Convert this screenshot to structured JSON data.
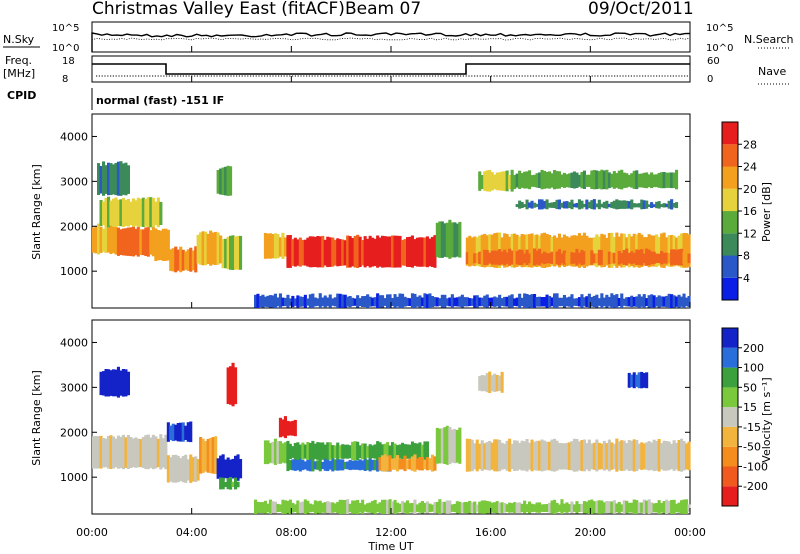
{
  "header": {
    "title": "Christmas Valley East (fitACF)",
    "beam": "Beam 07",
    "date": "09/Oct/2011"
  },
  "panels": {
    "nsky": {
      "label": "N.Sky",
      "left_ticks": [
        "10^5",
        "10^0"
      ],
      "right_ticks": [
        "10^5",
        "10^0"
      ],
      "right_label": "N.Search"
    },
    "freq": {
      "label_line1": "Freq.",
      "label_line2": "[MHz]",
      "left_ticks": [
        "18",
        "8"
      ],
      "right_ticks": [
        "60",
        "0"
      ],
      "right_label": "Nave"
    },
    "cpid": {
      "label": "CPID",
      "mode_text": "normal (fast) -151 IF"
    }
  },
  "colors": {
    "power": [
      "#0a1ee6",
      "#2a58c8",
      "#3c8a5a",
      "#5aaa3c",
      "#e6d23c",
      "#f2a01e",
      "#f0641e",
      "#e61e1e"
    ],
    "velocity": [
      "#e61e1e",
      "#f05a1e",
      "#f58c1e",
      "#f2b43c",
      "#c8c8be",
      "#7ac83c",
      "#3ca03c",
      "#2a6edc",
      "#1423c8"
    ],
    "ground": "#c8c8be"
  },
  "chart_data": [
    {
      "type": "heatmap",
      "name": "power",
      "ylabel": "Slant Range [km]",
      "colorbar_label": "Power [dB]",
      "colorbar_ticks": [
        "28",
        "24",
        "20",
        "16",
        "12",
        "8",
        "4"
      ],
      "ylim": [
        180,
        4500
      ],
      "yticks": [
        "4000",
        "3000",
        "2000",
        "1000"
      ],
      "xlim": [
        "00:00",
        "24:00"
      ],
      "regions": [
        {
          "t0": 0.0,
          "t1": 1.0,
          "r0": 1400,
          "r1": 2000,
          "level": 5
        },
        {
          "t0": 1.0,
          "t1": 2.5,
          "r0": 1350,
          "r1": 1950,
          "level": 6
        },
        {
          "t0": 2.5,
          "t1": 3.1,
          "r0": 1250,
          "r1": 1900,
          "level": 5
        },
        {
          "t0": 3.1,
          "t1": 4.2,
          "r0": 1000,
          "r1": 1500,
          "level": 6
        },
        {
          "t0": 4.2,
          "t1": 5.2,
          "r0": 1150,
          "r1": 1850,
          "level": 5
        },
        {
          "t0": 5.2,
          "t1": 6.0,
          "r0": 1050,
          "r1": 1750,
          "level": 4
        },
        {
          "t0": 6.9,
          "t1": 7.8,
          "r0": 1300,
          "r1": 1800,
          "level": 5
        },
        {
          "t0": 7.8,
          "t1": 13.8,
          "r0": 1100,
          "r1": 1750,
          "level": 7
        },
        {
          "t0": 13.8,
          "t1": 14.8,
          "r0": 1300,
          "r1": 2100,
          "level": 3
        },
        {
          "t0": 15.0,
          "t1": 24.0,
          "r0": 1100,
          "r1": 1800,
          "level": 5
        },
        {
          "t0": 15.0,
          "t1": 24.0,
          "r0": 1150,
          "r1": 1450,
          "level": 6
        },
        {
          "t0": 15.5,
          "t1": 17.0,
          "r0": 2800,
          "r1": 3200,
          "level": 4
        },
        {
          "t0": 17.0,
          "t1": 23.5,
          "r0": 2400,
          "r1": 2550,
          "level": 2
        },
        {
          "t0": 17.0,
          "t1": 23.5,
          "r0": 2850,
          "r1": 3200,
          "level": 3
        },
        {
          "t0": 0.3,
          "t1": 2.8,
          "r0": 2000,
          "r1": 2600,
          "level": 4
        },
        {
          "t0": 0.2,
          "t1": 1.5,
          "r0": 2700,
          "r1": 3400,
          "level": 2
        },
        {
          "t0": 5.0,
          "t1": 5.6,
          "r0": 2700,
          "r1": 3300,
          "level": 3
        },
        {
          "t0": 6.5,
          "t1": 24.0,
          "r0": 200,
          "r1": 450,
          "level": 1
        }
      ]
    },
    {
      "type": "heatmap",
      "name": "velocity",
      "ylabel": "Slant Range [km]",
      "colorbar_label": "Velocity [m s⁻¹]",
      "colorbar_ticks": [
        "200",
        "100",
        "50",
        "15",
        "-15",
        "-50",
        "-100",
        "-200"
      ],
      "ylim": [
        180,
        4500
      ],
      "yticks": [
        "4000",
        "3000",
        "2000",
        "1000"
      ],
      "xlim": [
        "00:00",
        "24:00"
      ],
      "xticks": [
        "00:00",
        "04:00",
        "08:00",
        "12:00",
        "16:00",
        "20:00",
        "00:00"
      ],
      "xlabel": "Time UT",
      "regions": [
        {
          "t0": 0.0,
          "t1": 3.0,
          "r0": 1200,
          "r1": 1900,
          "level": 4
        },
        {
          "t0": 3.0,
          "t1": 4.3,
          "r0": 900,
          "r1": 1450,
          "level": 4
        },
        {
          "t0": 4.3,
          "t1": 5.0,
          "r0": 1100,
          "r1": 1850,
          "level": 3
        },
        {
          "t0": 5.0,
          "t1": 6.0,
          "r0": 950,
          "r1": 1450,
          "level": 8
        },
        {
          "t0": 5.1,
          "t1": 5.9,
          "r0": 750,
          "r1": 950,
          "level": 6
        },
        {
          "t0": 6.9,
          "t1": 7.8,
          "r0": 1300,
          "r1": 1800,
          "level": 5
        },
        {
          "t0": 7.8,
          "t1": 12.0,
          "r0": 1150,
          "r1": 1400,
          "level": 7
        },
        {
          "t0": 7.8,
          "t1": 13.5,
          "r0": 1400,
          "r1": 1750,
          "level": 6
        },
        {
          "t0": 11.5,
          "t1": 13.8,
          "r0": 1150,
          "r1": 1450,
          "level": 3
        },
        {
          "t0": 13.8,
          "t1": 14.8,
          "r0": 1300,
          "r1": 2100,
          "level": 5
        },
        {
          "t0": 15.0,
          "t1": 24.0,
          "r0": 1150,
          "r1": 1800,
          "level": 4
        },
        {
          "t0": 0.3,
          "t1": 1.5,
          "r0": 2800,
          "r1": 3400,
          "level": 8
        },
        {
          "t0": 3.0,
          "t1": 4.0,
          "r0": 1800,
          "r1": 2200,
          "level": 8
        },
        {
          "t0": 5.4,
          "t1": 5.8,
          "r0": 2600,
          "r1": 3500,
          "level": 0
        },
        {
          "t0": 7.5,
          "t1": 8.2,
          "r0": 1900,
          "r1": 2300,
          "level": 0
        },
        {
          "t0": 15.5,
          "t1": 16.5,
          "r0": 2900,
          "r1": 3300,
          "level": 4
        },
        {
          "t0": 21.5,
          "t1": 22.3,
          "r0": 3000,
          "r1": 3300,
          "level": 8
        },
        {
          "t0": 6.5,
          "t1": 24.0,
          "r0": 200,
          "r1": 450,
          "level": 5
        }
      ]
    }
  ]
}
